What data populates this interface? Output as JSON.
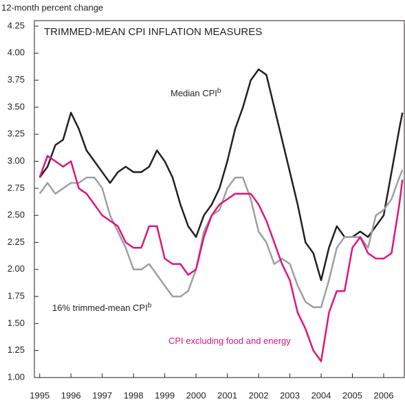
{
  "chart_data": {
    "type": "line",
    "title": "TRIMMED-MEAN CPI INFLATION MEASURES",
    "y_label": "12-month percent change",
    "x": [
      1995,
      1995.25,
      1995.5,
      1995.75,
      1996,
      1996.25,
      1996.5,
      1996.75,
      1997,
      1997.25,
      1997.5,
      1997.75,
      1998,
      1998.25,
      1998.5,
      1998.75,
      1999,
      1999.25,
      1999.5,
      1999.75,
      2000,
      2000.25,
      2000.5,
      2000.75,
      2001,
      2001.25,
      2001.5,
      2001.75,
      2002,
      2002.25,
      2002.5,
      2002.75,
      2003,
      2003.25,
      2003.5,
      2003.75,
      2004,
      2004.25,
      2004.5,
      2004.75,
      2005,
      2005.25,
      2005.5,
      2005.75,
      2006,
      2006.25,
      2006.5,
      2006.6
    ],
    "series": [
      {
        "name": "Median CPI",
        "color": "#231f20",
        "values": [
          2.85,
          2.95,
          3.15,
          3.2,
          3.45,
          3.3,
          3.1,
          3.0,
          2.9,
          2.8,
          2.9,
          2.95,
          2.9,
          2.9,
          2.95,
          3.1,
          3.0,
          2.85,
          2.6,
          2.4,
          2.3,
          2.5,
          2.6,
          2.75,
          3.0,
          3.3,
          3.5,
          3.75,
          3.85,
          3.8,
          3.5,
          3.2,
          2.9,
          2.6,
          2.25,
          2.15,
          1.9,
          2.2,
          2.4,
          2.3,
          2.3,
          2.35,
          2.3,
          2.4,
          2.5,
          2.9,
          3.3,
          3.45
        ]
      },
      {
        "name": "16% trimmed-mean CPI",
        "color": "#9d9fa2",
        "values": [
          2.7,
          2.8,
          2.7,
          2.75,
          2.8,
          2.8,
          2.85,
          2.85,
          2.75,
          2.5,
          2.35,
          2.2,
          2.0,
          2.0,
          2.05,
          1.95,
          1.85,
          1.75,
          1.75,
          1.8,
          2.0,
          2.35,
          2.5,
          2.55,
          2.75,
          2.85,
          2.85,
          2.65,
          2.35,
          2.25,
          2.05,
          2.1,
          2.05,
          1.85,
          1.7,
          1.65,
          1.65,
          1.9,
          2.2,
          2.3,
          2.3,
          2.3,
          2.2,
          2.5,
          2.55,
          2.65,
          2.85,
          2.92
        ]
      },
      {
        "name": "CPI excluding food and energy",
        "color": "#e2127a",
        "values": [
          2.85,
          3.05,
          3.0,
          2.95,
          3.0,
          2.75,
          2.7,
          2.6,
          2.5,
          2.45,
          2.4,
          2.25,
          2.2,
          2.2,
          2.4,
          2.4,
          2.1,
          2.05,
          2.05,
          1.95,
          2.0,
          2.3,
          2.5,
          2.6,
          2.65,
          2.7,
          2.7,
          2.7,
          2.6,
          2.45,
          2.25,
          2.05,
          1.9,
          1.6,
          1.45,
          1.25,
          1.15,
          1.6,
          1.8,
          1.8,
          2.2,
          2.3,
          2.15,
          2.1,
          2.1,
          2.15,
          2.6,
          2.83
        ]
      }
    ],
    "annotations": [
      {
        "text": "Median CPI",
        "sup": "b"
      },
      {
        "text": "16% trimmed-mean CPI",
        "sup": "b"
      },
      {
        "text": "CPI excluding food and energy"
      }
    ],
    "xlim": [
      1994.83,
      2006.66
    ],
    "xticks": [
      1995,
      1996,
      1997,
      1998,
      1999,
      2000,
      2001,
      2002,
      2003,
      2004,
      2005,
      2006
    ],
    "ylim": [
      1,
      4.25
    ],
    "yticks": [
      {
        "value": 1,
        "label": "1.00"
      },
      1.25,
      {
        "value": 1.5,
        "label": "1.50"
      },
      1.75,
      {
        "value": 2,
        "label": "2.00"
      },
      2.25,
      {
        "value": 2.5,
        "label": "2.50"
      },
      2.75,
      {
        "value": 3,
        "label": "3.00"
      },
      3.25,
      {
        "value": 3.5,
        "label": "3.50"
      },
      3.75,
      {
        "value": 4,
        "label": "4.00"
      },
      4.25
    ]
  }
}
